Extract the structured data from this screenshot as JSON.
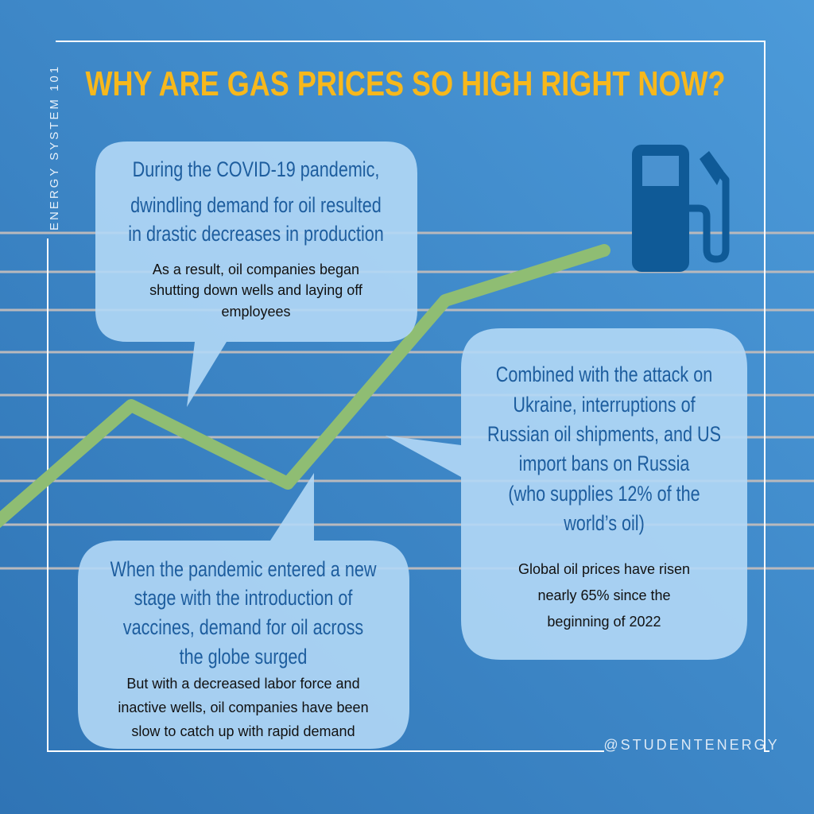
{
  "title": "WHY ARE GAS PRICES SO HIGH RIGHT NOW?",
  "side_label": "ENERGY SYSTEM 101",
  "handle": "@STUDENTENERGY",
  "bubbles": [
    {
      "heading": [
        "During the COVID-19 pandemic,",
        "dwindling demand for oil resulted",
        "in drastic decreases in production"
      ],
      "body": [
        "As a result, oil companies began",
        "shutting down wells and laying off",
        "employees"
      ]
    },
    {
      "heading": [
        "Combined with the attack on",
        "Ukraine, interruptions of",
        "Russian oil shipments, and US",
        "import bans on Russia",
        "(who supplies 12% of the",
        "world’s oil)"
      ],
      "body": [
        "Global oil prices have risen",
        "nearly 65% since the",
        "beginning of 2022"
      ]
    },
    {
      "heading": [
        "When the pandemic entered a new",
        "stage with the introduction of",
        "vaccines, demand for oil across",
        "the globe surged"
      ],
      "body": [
        "But with a decreased labor force and",
        "inactive wells, oil companies have been",
        "slow to catch up with rapid demand"
      ]
    }
  ]
}
